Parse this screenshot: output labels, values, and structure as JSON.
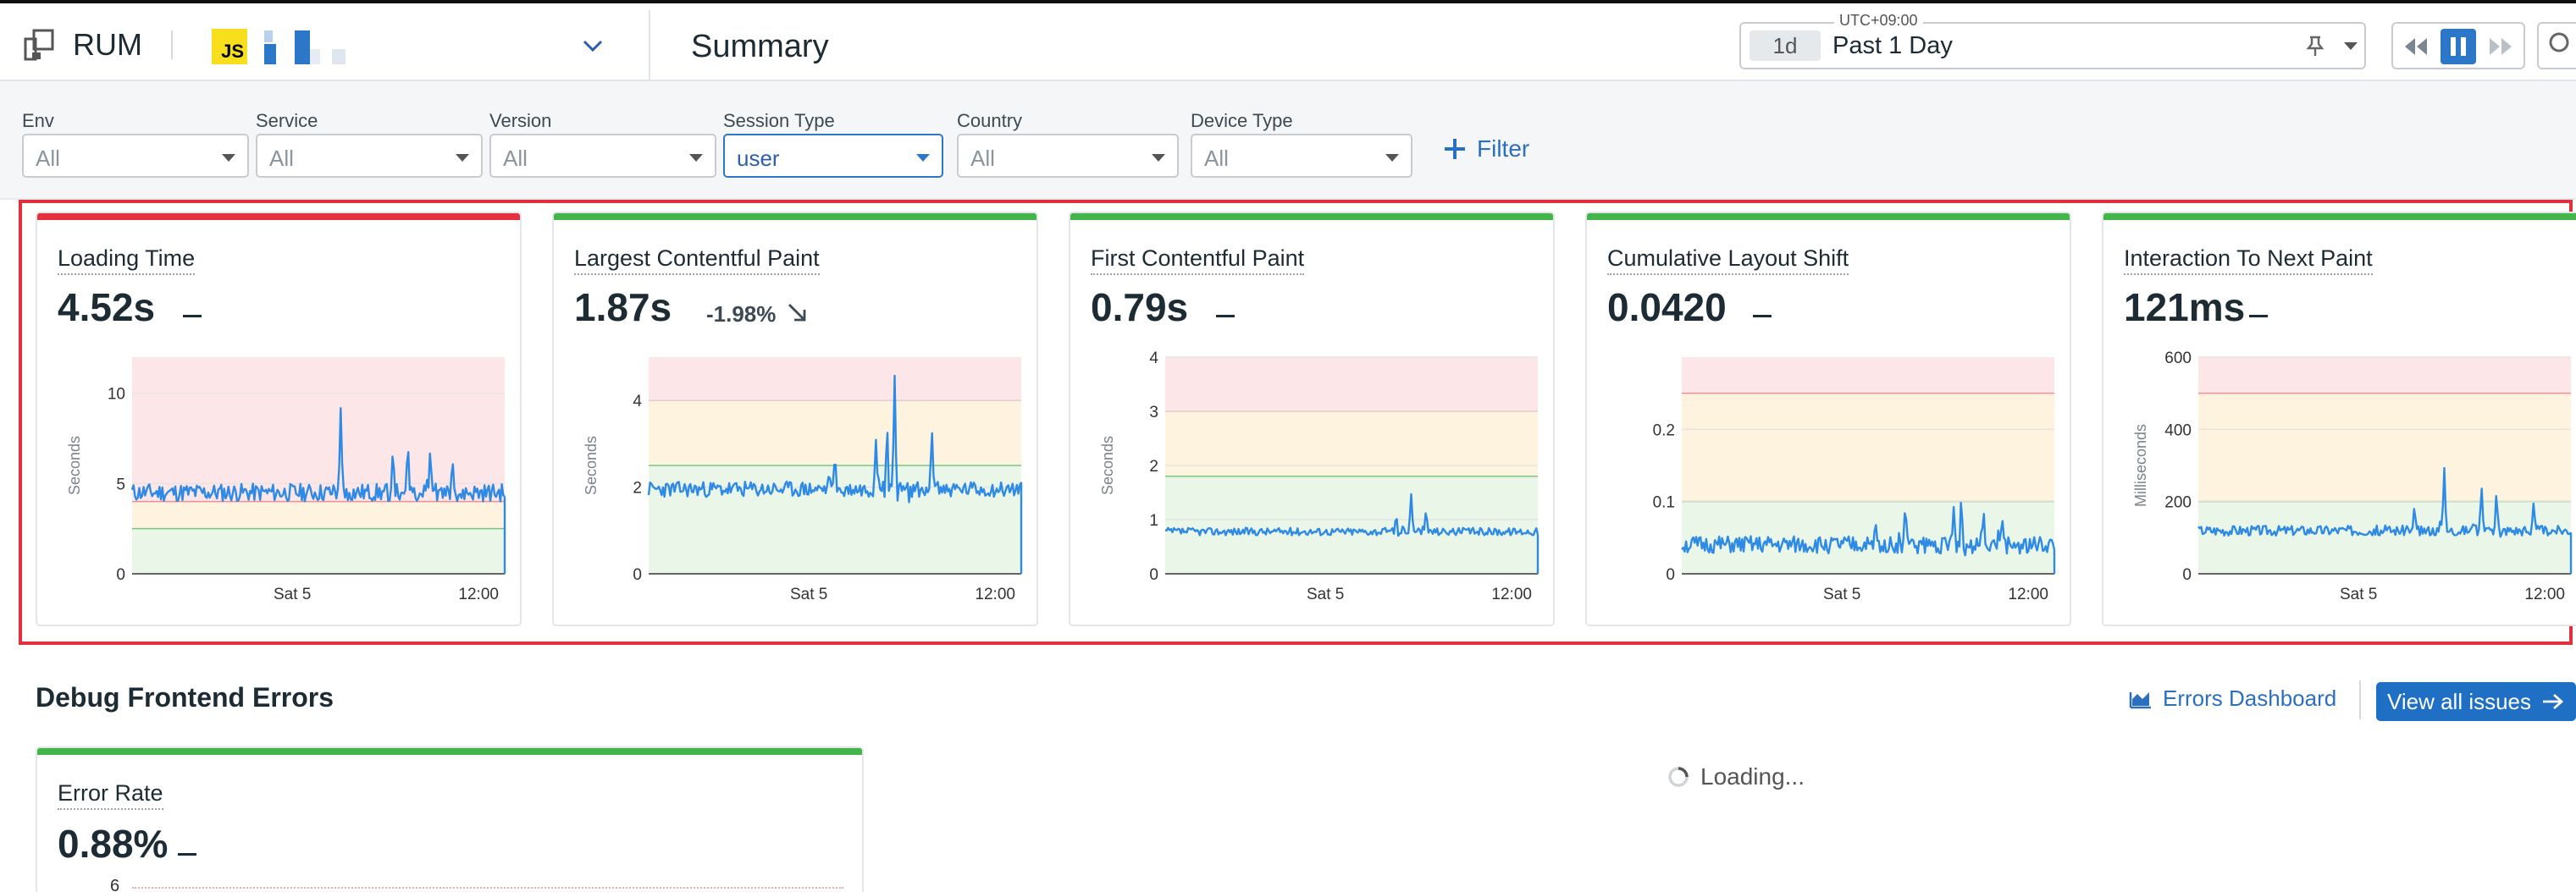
{
  "header": {
    "app_name": "RUM",
    "app_badge": "JS",
    "page_title": "Summary",
    "timezone": "UTC+09:00",
    "time_chip": "1d",
    "time_label": "Past 1 Day"
  },
  "filters": [
    {
      "label": "Env",
      "value": "All",
      "active": false
    },
    {
      "label": "Service",
      "value": "All",
      "active": false
    },
    {
      "label": "Version",
      "value": "All",
      "active": false
    },
    {
      "label": "Session Type",
      "value": "user",
      "active": true
    },
    {
      "label": "Country",
      "value": "All",
      "active": false
    },
    {
      "label": "Device Type",
      "value": "All",
      "active": false
    }
  ],
  "add_filter_label": "Filter",
  "colors": {
    "good": "#43b54b",
    "bad": "#e5303f",
    "line": "#2f8ae5",
    "accent": "#1f6fc5"
  },
  "chart_data": [
    {
      "type": "line",
      "title": "Loading Time",
      "value": "4.52s",
      "change": "",
      "status": "bad",
      "ylabel": "Seconds",
      "yticks": [
        0,
        5,
        10
      ],
      "ylim": [
        0,
        12
      ],
      "xticks": [
        "Sat 5",
        "12:00"
      ],
      "thresholds": [
        2.5,
        4
      ],
      "base": 4.5,
      "noise": 0.5,
      "spikes": [
        [
          0.56,
          9.3
        ],
        [
          0.74,
          7.4
        ],
        [
          0.7,
          7
        ],
        [
          0.8,
          7
        ],
        [
          0.86,
          6.4
        ]
      ],
      "seed": 11
    },
    {
      "type": "line",
      "title": "Largest Contentful Paint",
      "value": "1.87s",
      "change": "-1.98%",
      "status": "good",
      "ylabel": "Seconds",
      "yticks": [
        0,
        2,
        4
      ],
      "ylim": [
        0,
        5
      ],
      "xticks": [
        "Sat 5",
        "12:00"
      ],
      "thresholds": [
        2.5,
        4
      ],
      "base": 1.95,
      "noise": 0.18,
      "spikes": [
        [
          0.66,
          4.5
        ],
        [
          0.64,
          3.5
        ],
        [
          0.68,
          1.0
        ],
        [
          0.61,
          3.1
        ],
        [
          0.76,
          3.4
        ],
        [
          0.5,
          2.8
        ]
      ],
      "seed": 23
    },
    {
      "type": "line",
      "title": "First Contentful Paint",
      "value": "0.79s",
      "change": "",
      "status": "good",
      "ylabel": "Seconds",
      "yticks": [
        0,
        1,
        2,
        3,
        4
      ],
      "ylim": [
        0,
        4
      ],
      "xticks": [
        "Sat 5",
        "12:00"
      ],
      "thresholds": [
        1.8,
        3
      ],
      "base": 0.78,
      "noise": 0.07,
      "spikes": [
        [
          0.66,
          1.5
        ],
        [
          0.62,
          1.1
        ],
        [
          0.7,
          1.2
        ]
      ],
      "seed": 37
    },
    {
      "type": "line",
      "title": "Cumulative Layout Shift",
      "value": "0.0420",
      "change": "",
      "status": "good",
      "ylabel": "",
      "yticks": [
        0,
        0.1,
        0.2
      ],
      "ylim": [
        0,
        0.3
      ],
      "xticks": [
        "Sat 5",
        "12:00"
      ],
      "thresholds": [
        0.1,
        0.25
      ],
      "base": 0.04,
      "noise": 0.012,
      "spikes": [
        [
          0.6,
          0.1
        ],
        [
          0.73,
          0.095
        ],
        [
          0.75,
          0.11
        ],
        [
          0.81,
          0.09
        ],
        [
          0.86,
          0.08
        ],
        [
          0.52,
          0.075
        ]
      ],
      "seed": 51
    },
    {
      "type": "line",
      "title": "Interaction To Next Paint",
      "value": "121ms",
      "change": "",
      "status": "good",
      "ylabel": "Milliseconds",
      "yticks": [
        0,
        200,
        400,
        600
      ],
      "ylim": [
        0,
        600
      ],
      "xticks": [
        "Sat 5",
        "12:00"
      ],
      "thresholds": [
        200,
        500
      ],
      "base": 120,
      "noise": 14,
      "spikes": [
        [
          0.66,
          300
        ],
        [
          0.76,
          250
        ],
        [
          0.8,
          230
        ],
        [
          0.58,
          190
        ],
        [
          0.9,
          200
        ]
      ],
      "seed": 67
    }
  ],
  "errors_section": {
    "title": "Debug Frontend Errors",
    "dashboard_link": "Errors Dashboard",
    "view_all": "View all issues",
    "card_title": "Error Rate",
    "card_value": "0.88%",
    "first_tick": "6",
    "loading": "Loading..."
  }
}
